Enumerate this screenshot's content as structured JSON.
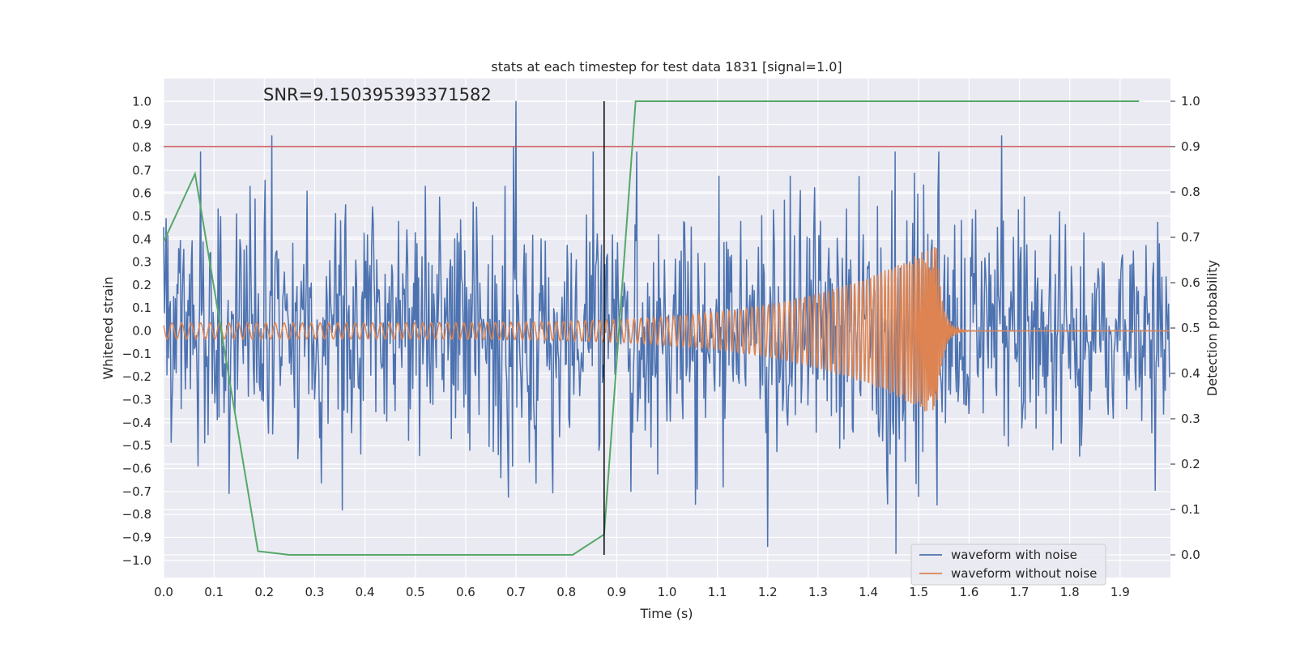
{
  "chart_data": {
    "type": "line",
    "title": "stats at each timestep for test data 1831 [signal=1.0]",
    "xlabel": "Time (s)",
    "ylabel": "Whitened strain",
    "y2label": "Detection probability",
    "xlim": [
      0.0,
      2.0
    ],
    "ylim": [
      -1.075,
      1.1
    ],
    "y2lim": [
      -0.05,
      1.05
    ],
    "xticks": [
      "0.0",
      "0.1",
      "0.2",
      "0.3",
      "0.4",
      "0.5",
      "0.6",
      "0.7",
      "0.8",
      "0.9",
      "1.0",
      "1.1",
      "1.2",
      "1.3",
      "1.4",
      "1.5",
      "1.6",
      "1.7",
      "1.8",
      "1.9"
    ],
    "yticks": [
      "1.0",
      "0.9",
      "0.8",
      "0.7",
      "0.6",
      "0.5",
      "0.4",
      "0.3",
      "0.2",
      "0.1",
      "0.0",
      "−0.1",
      "−0.2",
      "−0.3",
      "−0.4",
      "−0.5",
      "−0.6",
      "−0.7",
      "−0.8",
      "−0.9",
      "−1.0"
    ],
    "y2ticks": [
      "1.0",
      "0.9",
      "0.8",
      "0.7",
      "0.6",
      "0.5",
      "0.4",
      "0.3",
      "0.2",
      "0.1",
      "0.0"
    ],
    "annotation": "SNR=9.150395393371582",
    "threshold": {
      "value": 0.9,
      "axis": "y2",
      "color": "#c44e52"
    },
    "marker_time": 0.875,
    "legend": {
      "placement": "lower-right",
      "entries": [
        {
          "label": "waveform with noise",
          "color": "#4c72b0"
        },
        {
          "label": "waveform without noise",
          "color": "#dd8452"
        }
      ]
    },
    "series": [
      {
        "name": "waveform with noise",
        "color": "#4c72b0",
        "axis": "y",
        "description": "noisy whitened strain, roughly within -0.8..0.85 with spikes to 1.0 near t=0.7",
        "seed": 1831,
        "samples": 1200,
        "spikes": [
          {
            "x": 0.215,
            "y": 0.85
          },
          {
            "x": 0.7,
            "y": 1.0
          },
          {
            "x": 0.695,
            "y": 0.8
          },
          {
            "x": 1.665,
            "y": 0.85
          },
          {
            "x": 1.455,
            "y": -0.97
          },
          {
            "x": 1.2,
            "y": -0.94
          },
          {
            "x": 0.355,
            "y": -0.78
          }
        ]
      },
      {
        "name": "waveform without noise",
        "color": "#dd8452",
        "axis": "y",
        "description": "chirp signal growing in frequency and amplitude, merging near t=1.535 then ringdown",
        "amplitude_start": 0.035,
        "amplitude_peak": 0.38,
        "merger_time": 1.535
      },
      {
        "name": "detection probability",
        "color": "#55a868",
        "axis": "y2",
        "x": [
          0.0,
          0.0625,
          0.1875,
          0.25,
          0.8125,
          0.875,
          0.9375,
          1.9375
        ],
        "values": [
          0.69,
          0.84,
          0.008,
          0.0,
          0.0,
          0.045,
          1.0,
          1.0
        ]
      }
    ]
  }
}
